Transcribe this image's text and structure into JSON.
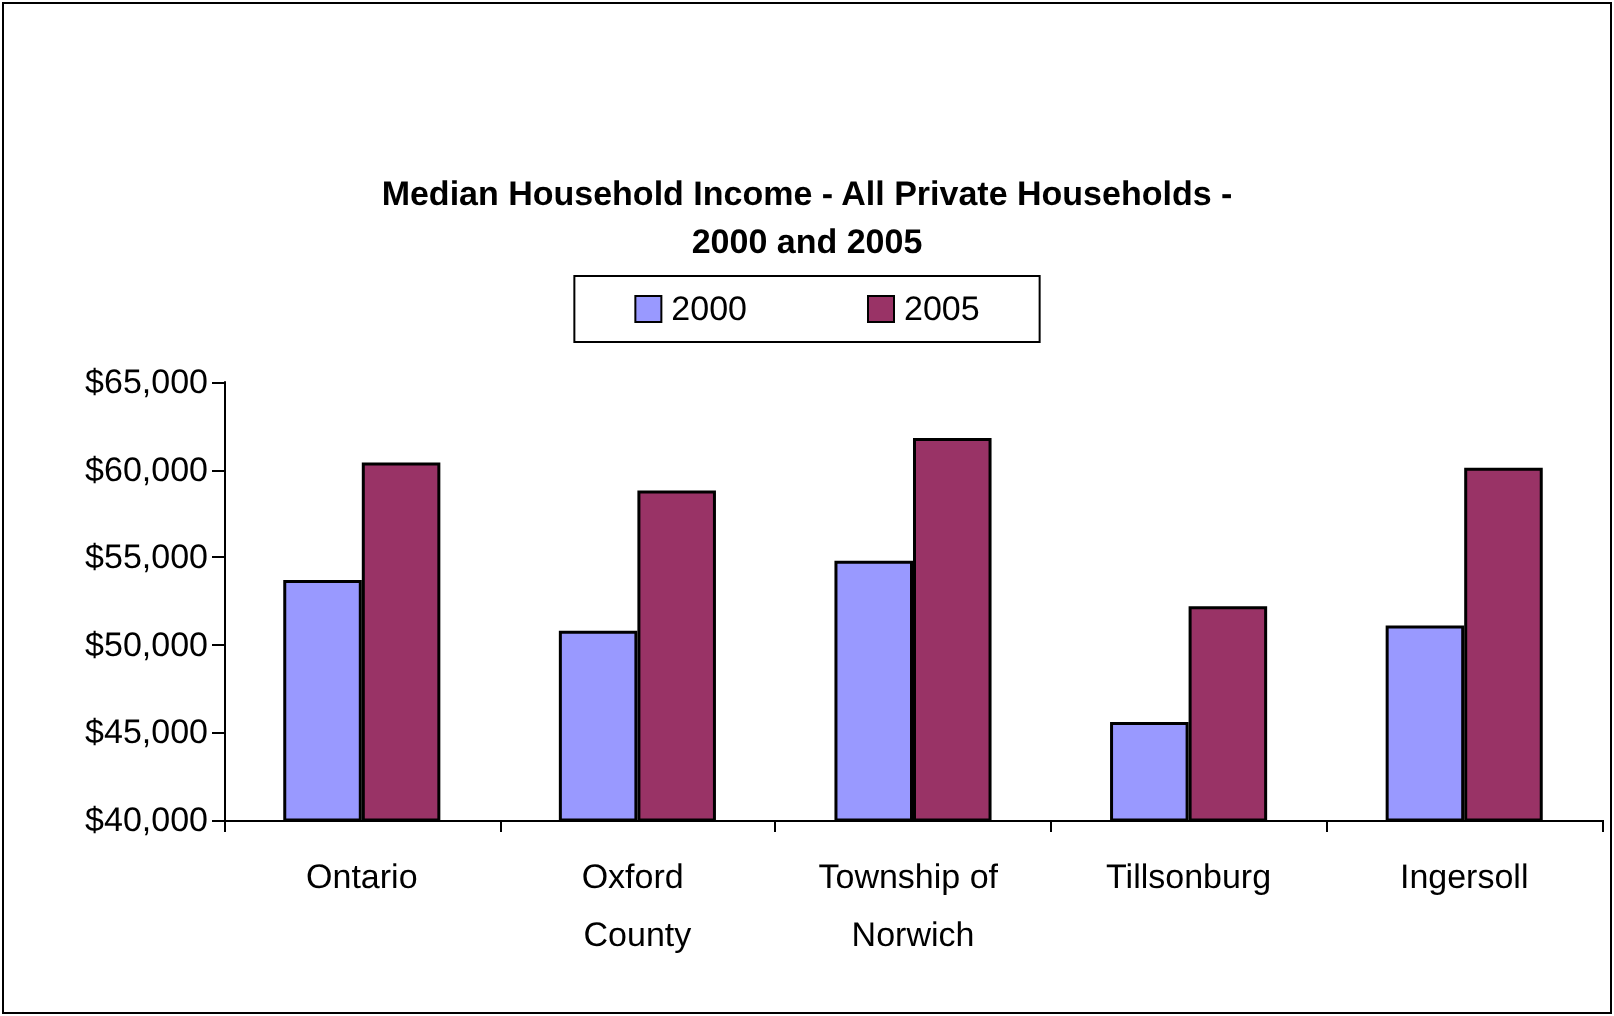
{
  "chart_data": {
    "type": "bar",
    "title": "Median Household Income - All Private Households -\n2000 and 2005",
    "categories": [
      "Ontario",
      "Oxford County",
      "Township of Norwich",
      "Tillsonburg",
      "Ingersoll"
    ],
    "series": [
      {
        "name": "2000",
        "color": "#9999ff",
        "values": [
          53700,
          50800,
          54800,
          45600,
          51100
        ]
      },
      {
        "name": "2005",
        "color": "#993366",
        "values": [
          60400,
          58800,
          61800,
          52200,
          60100
        ]
      }
    ],
    "ylim": [
      40000,
      65000
    ],
    "yticks": [
      {
        "value": 40000,
        "label": "$40,000"
      },
      {
        "value": 45000,
        "label": "$45,000"
      },
      {
        "value": 50000,
        "label": "$50,000"
      },
      {
        "value": 55000,
        "label": "$55,000"
      },
      {
        "value": 60000,
        "label": "$60,000"
      },
      {
        "value": 65000,
        "label": "$65,000"
      }
    ],
    "grid": false,
    "legend": "top"
  }
}
